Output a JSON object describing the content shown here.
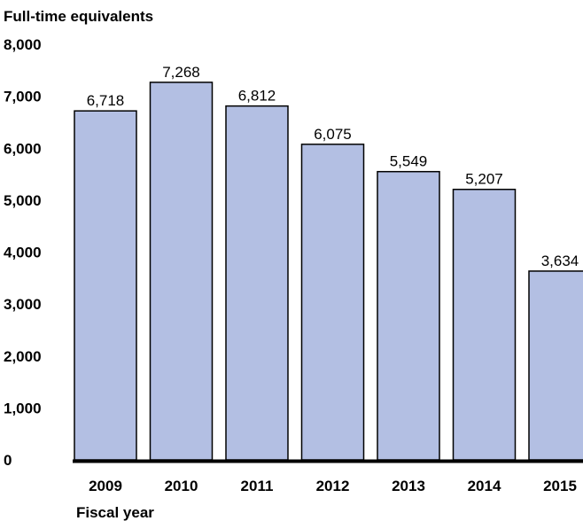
{
  "chart_data": {
    "type": "bar",
    "title": "",
    "ylabel": "Full-time equivalents",
    "xlabel": "Fiscal year",
    "categories": [
      "2009",
      "2010",
      "2011",
      "2012",
      "2013",
      "2014",
      "2015"
    ],
    "values": [
      6718,
      7268,
      6812,
      6075,
      5549,
      5207,
      3634
    ],
    "value_labels": [
      "6,718",
      "7,268",
      "6,812",
      "6,075",
      "5,549",
      "5,207",
      "3,634"
    ],
    "ylim": [
      0,
      8000
    ],
    "yticks": [
      0,
      1000,
      2000,
      3000,
      4000,
      5000,
      6000,
      7000,
      8000
    ],
    "ytick_labels": [
      "0",
      "1,000",
      "2,000",
      "3,000",
      "4,000",
      "5,000",
      "6,000",
      "7,000",
      "8,000"
    ],
    "grid": false,
    "legend": "none",
    "colors": {
      "bar_fill": "#b3bfe3",
      "bar_stroke": "#000000",
      "axis": "#000000"
    }
  }
}
